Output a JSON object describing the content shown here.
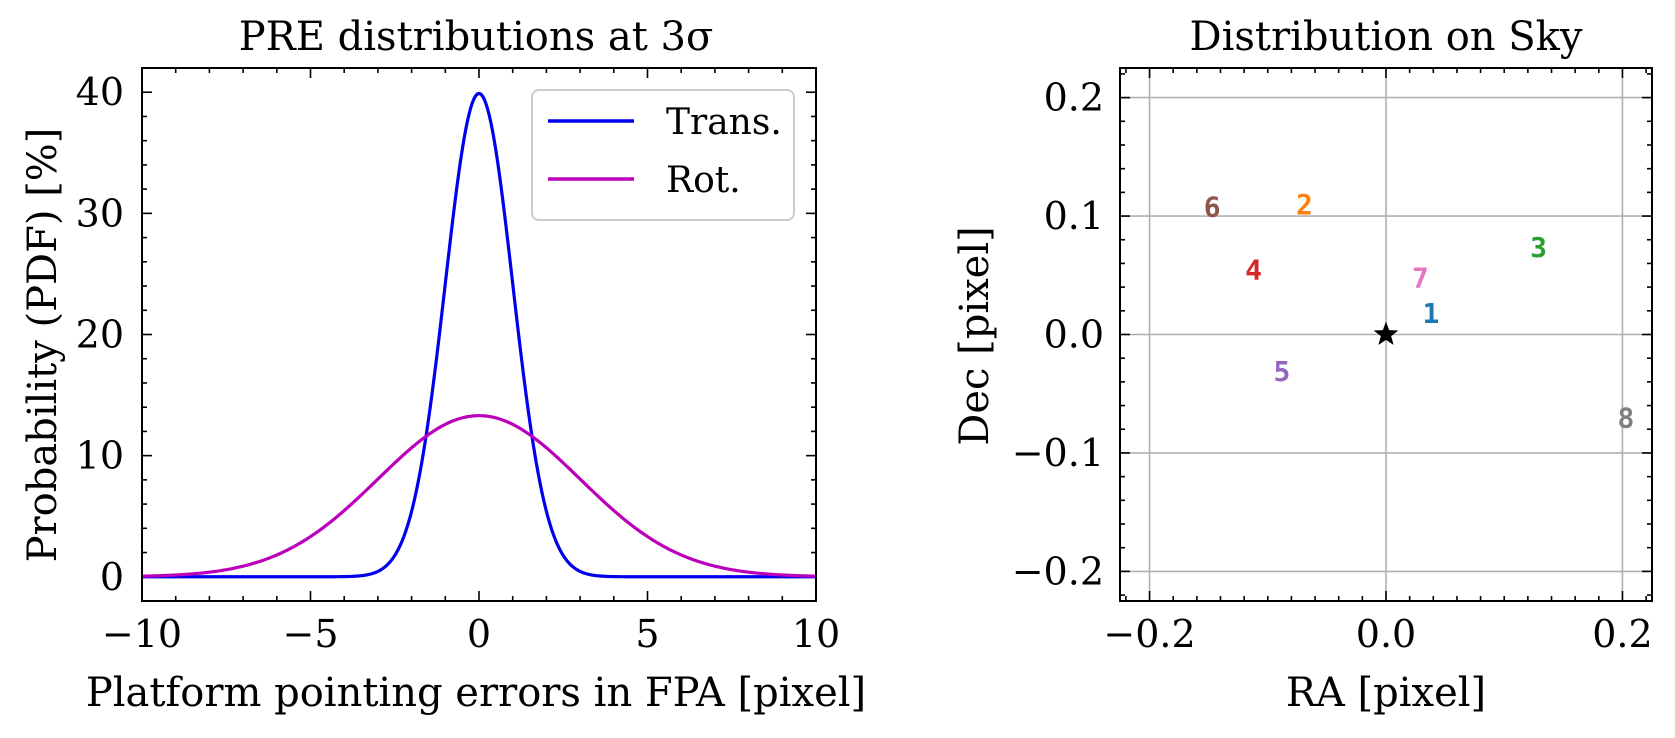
{
  "colors": {
    "trans": "#0000ee",
    "rot": "#bb00bb",
    "grid": "#b0b0b0",
    "star": "#000000"
  },
  "chart_data": [
    {
      "type": "line",
      "title": "PRE distributions at 3σ",
      "xlabel": "Platform pointing errors in FPA [pixel]",
      "ylabel": "Probability (PDF) [%]",
      "xlim": [
        -10,
        10
      ],
      "ylim": [
        -2,
        42
      ],
      "xticks": [
        -10,
        -5,
        0,
        5,
        10
      ],
      "xtick_labels": [
        "−10",
        "−5",
        "0",
        "5",
        "10"
      ],
      "yticks": [
        0,
        10,
        20,
        30,
        40
      ],
      "ytick_labels": [
        "0",
        "10",
        "20",
        "30",
        "40"
      ],
      "grid": false,
      "legend_position": "upper-right",
      "series": [
        {
          "name": "Trans.",
          "color": "#0000ee",
          "distribution": "gaussian",
          "mean": 0,
          "sigma": 1.0,
          "peak": 39.9
        },
        {
          "name": "Rot.",
          "color": "#bb00bb",
          "distribution": "gaussian",
          "mean": 0,
          "sigma": 3.0,
          "peak": 13.3
        }
      ]
    },
    {
      "type": "scatter",
      "title": "Distribution on Sky",
      "xlabel": "RA [pixel]",
      "ylabel": "Dec [pixel]",
      "xlim": [
        -0.225,
        0.225
      ],
      "ylim": [
        -0.225,
        0.225
      ],
      "xticks": [
        -0.2,
        0.0,
        0.2
      ],
      "xtick_labels": [
        "−0.2",
        "0.0",
        "0.2"
      ],
      "yticks": [
        -0.2,
        -0.1,
        0.0,
        0.1,
        0.2
      ],
      "ytick_labels": [
        "−0.2",
        "−0.1",
        "0.0",
        "0.1",
        "0.2"
      ],
      "grid": true,
      "center_marker": {
        "shape": "star",
        "x": 0.0,
        "y": 0.0
      },
      "points": [
        {
          "label": "1",
          "x": 0.038,
          "y": 0.018,
          "color": "#1f77b4"
        },
        {
          "label": "2",
          "x": -0.069,
          "y": 0.11,
          "color": "#ff7f0e"
        },
        {
          "label": "3",
          "x": 0.129,
          "y": 0.074,
          "color": "#2ca02c"
        },
        {
          "label": "4",
          "x": -0.112,
          "y": 0.055,
          "color": "#d62728"
        },
        {
          "label": "5",
          "x": -0.088,
          "y": -0.031,
          "color": "#9467bd"
        },
        {
          "label": "6",
          "x": -0.147,
          "y": 0.108,
          "color": "#8c564b"
        },
        {
          "label": "7",
          "x": 0.029,
          "y": 0.048,
          "color": "#e377c2"
        },
        {
          "label": "8",
          "x": 0.203,
          "y": -0.07,
          "color": "#7f7f7f"
        }
      ]
    }
  ]
}
